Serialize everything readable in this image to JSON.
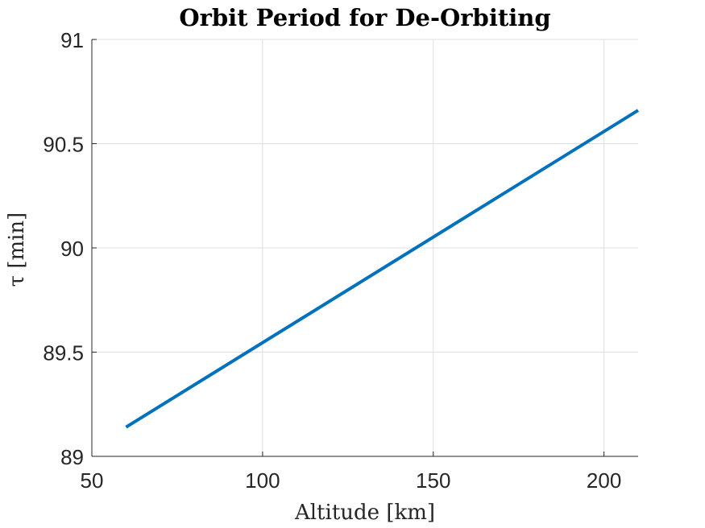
{
  "chart_data": {
    "type": "line",
    "title": "Orbit Period for De-Orbiting",
    "xlabel": "Altitude [km]",
    "ylabel": "τ [min]",
    "xlim": [
      50,
      210
    ],
    "ylim": [
      89,
      91
    ],
    "xticks": [
      50,
      100,
      150,
      200
    ],
    "yticks": [
      89,
      89.5,
      90,
      90.5,
      91
    ],
    "xtick_labels": [
      "50",
      "100",
      "150",
      "200"
    ],
    "ytick_labels": [
      "89",
      "89.5",
      "90",
      "90.5",
      "91"
    ],
    "grid": true,
    "legend": "none",
    "series": [
      {
        "color": "#0072BD",
        "x": [
          60,
          210
        ],
        "y": [
          89.14,
          90.66
        ]
      }
    ]
  }
}
